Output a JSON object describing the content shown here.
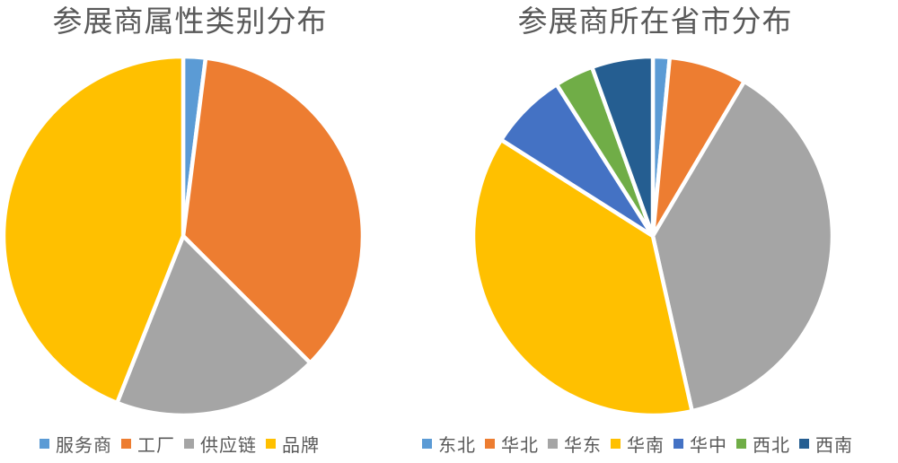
{
  "styles": {
    "background": "#FFFFFF",
    "title_color": "#595959",
    "legend_text_color": "#595959",
    "slice_gap_color": "#FFFFFF"
  },
  "chart_data": [
    {
      "type": "pie",
      "title": "参展商属性类别分布",
      "categories": [
        "服务商",
        "工厂",
        "供应链",
        "品牌"
      ],
      "values": [
        2,
        35.5,
        18.5,
        44
      ],
      "unit": "percent-estimated",
      "colors": [
        "#5B9BD5",
        "#ED7D31",
        "#A5A5A5",
        "#FFC000"
      ],
      "legend_position": "bottom",
      "start_angle_deg": 0,
      "direction": "clockwise"
    },
    {
      "type": "pie",
      "title": "参展商所在省市分布",
      "categories": [
        "东北",
        "华北",
        "华东",
        "华南",
        "华中",
        "西北",
        "西南"
      ],
      "values": [
        1.5,
        7,
        38,
        37.5,
        7,
        3.5,
        5.5
      ],
      "unit": "percent-estimated",
      "colors": [
        "#5B9BD5",
        "#ED7D31",
        "#A5A5A5",
        "#FFC000",
        "#4472C4",
        "#70AD47",
        "#255E91"
      ],
      "legend_position": "bottom",
      "start_angle_deg": 0,
      "direction": "clockwise"
    }
  ]
}
